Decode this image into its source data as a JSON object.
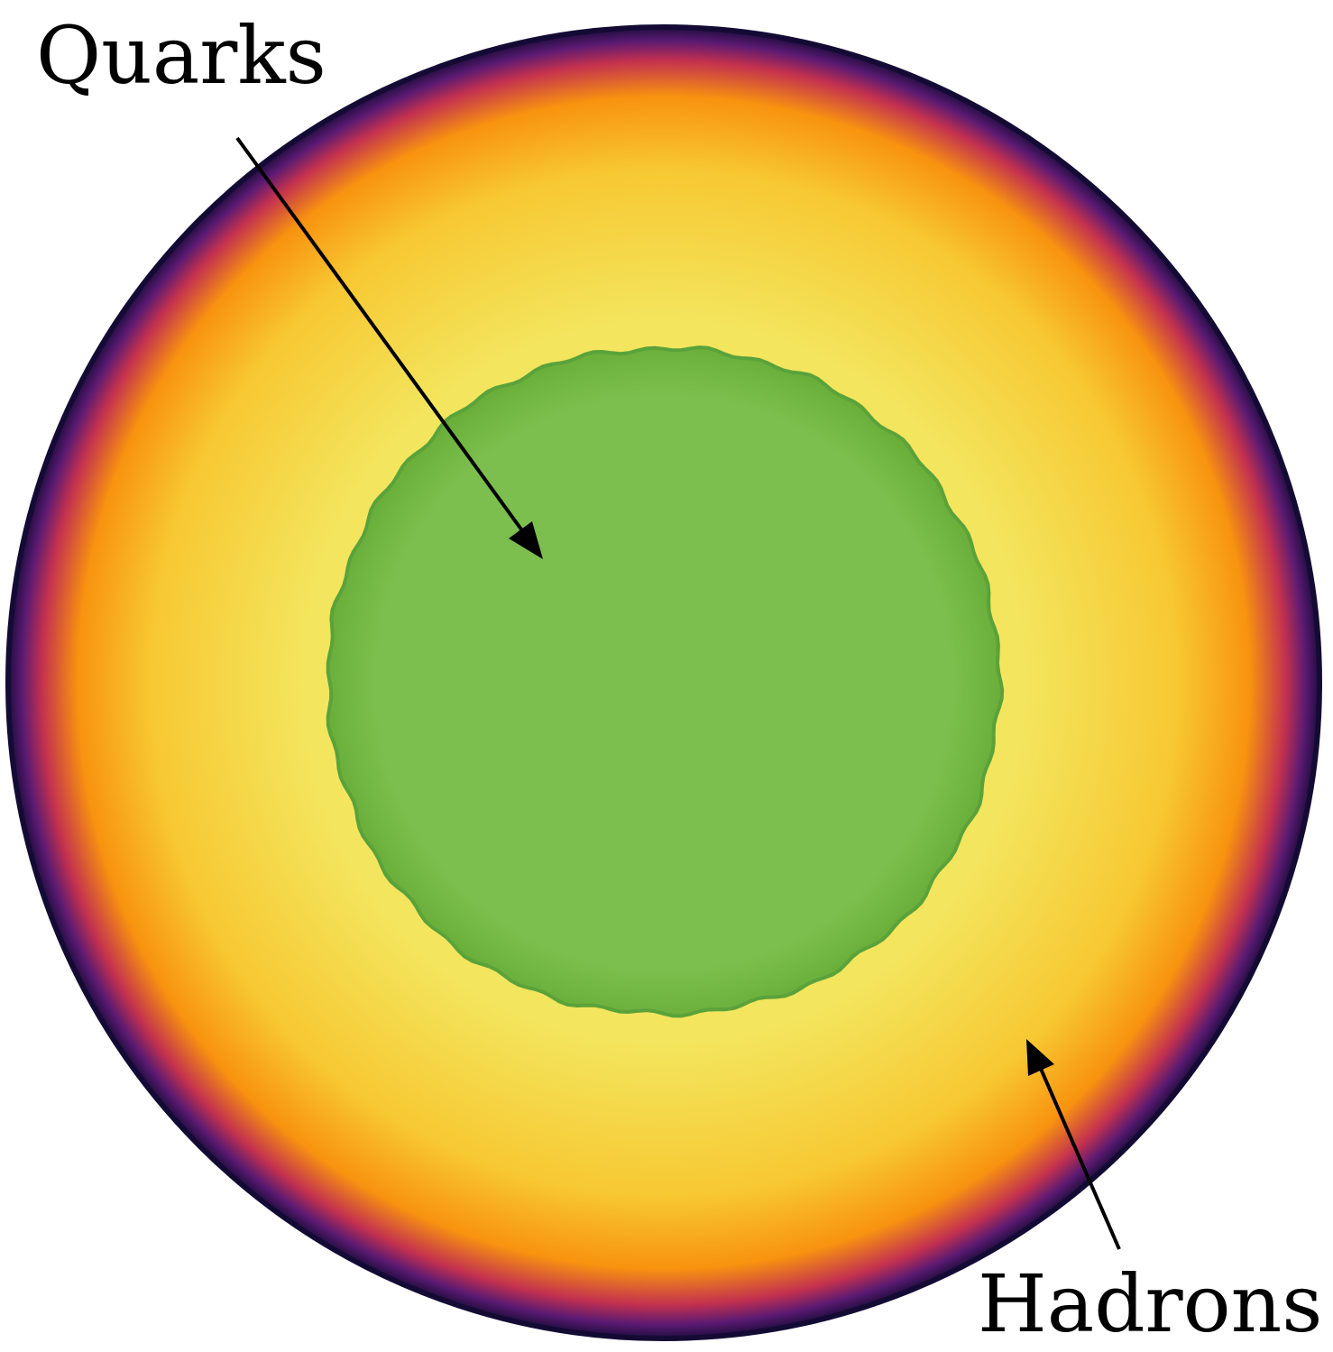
{
  "labels": {
    "core": "Quarks",
    "mantle": "Hadrons"
  },
  "colors": {
    "outer_edge": "#140b35",
    "purple": "#5b1a72",
    "red": "#c3314f",
    "orange": "#f8930f",
    "gold": "#f7c832",
    "yellow": "#f3e55d",
    "pale_yellow": "#f4ea6c",
    "core_fill": "#7cbf4e",
    "core_edge": "#6aae3a",
    "core_outline": "#5aa23a",
    "arrow": "#000000"
  }
}
